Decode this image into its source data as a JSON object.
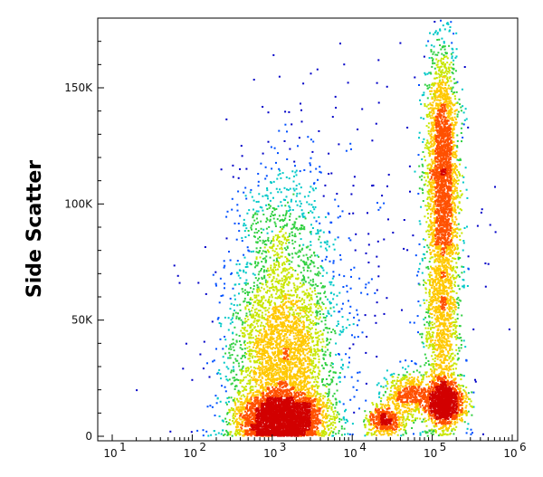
{
  "chart_data": {
    "type": "scatter",
    "title": "",
    "xlabel": "",
    "ylabel": "Side Scatter",
    "x_scale": "log",
    "xlim": [
      10,
      1000000
    ],
    "ylim": [
      0,
      180000
    ],
    "x_ticks": [
      {
        "value": 10,
        "base": "10",
        "exp": "1"
      },
      {
        "value": 100,
        "base": "10",
        "exp": "2"
      },
      {
        "value": 1000,
        "base": "10",
        "exp": "3"
      },
      {
        "value": 10000,
        "base": "10",
        "exp": "4"
      },
      {
        "value": 100000,
        "base": "10",
        "exp": "5"
      },
      {
        "value": 1000000,
        "base": "10",
        "exp": "6"
      }
    ],
    "y_ticks": [
      {
        "value": 0,
        "label": "0"
      },
      {
        "value": 50000,
        "label": "50K"
      },
      {
        "value": 100000,
        "label": "100K"
      },
      {
        "value": 150000,
        "label": "150K"
      }
    ],
    "grid": false,
    "density_colors": [
      "#0000c8",
      "#0050ff",
      "#00c8c8",
      "#30d040",
      "#c8e600",
      "#ffc800",
      "#ff5000",
      "#d20000"
    ],
    "populations": [
      {
        "x_center": 1300,
        "x_spread_decades": 0.28,
        "y_center": 8000,
        "y_spread": 6000,
        "count": 3000
      },
      {
        "x_center": 1300,
        "x_spread_decades": 0.32,
        "y_center": 30000,
        "y_spread": 18000,
        "count": 2500
      },
      {
        "x_center": 1400,
        "x_spread_decades": 0.33,
        "y_center": 70000,
        "y_spread": 25000,
        "count": 1200
      },
      {
        "x_center": 140000,
        "x_spread_decades": 0.12,
        "y_center": 15000,
        "y_spread": 5000,
        "count": 1500
      },
      {
        "x_center": 130000,
        "x_spread_decades": 0.1,
        "y_center": 110000,
        "y_spread": 30000,
        "count": 2800
      },
      {
        "x_center": 130000,
        "x_spread_decades": 0.12,
        "y_center": 45000,
        "y_spread": 20000,
        "count": 900
      },
      {
        "x_center": 25000,
        "x_spread_decades": 0.12,
        "y_center": 7000,
        "y_spread": 3500,
        "count": 500
      },
      {
        "x_center": 50000,
        "x_spread_decades": 0.15,
        "y_center": 18000,
        "y_spread": 5000,
        "count": 500
      },
      {
        "x_center": 10000,
        "x_spread_decades": 0.9,
        "y_center": 60000,
        "y_spread": 50000,
        "count": 300
      }
    ]
  }
}
